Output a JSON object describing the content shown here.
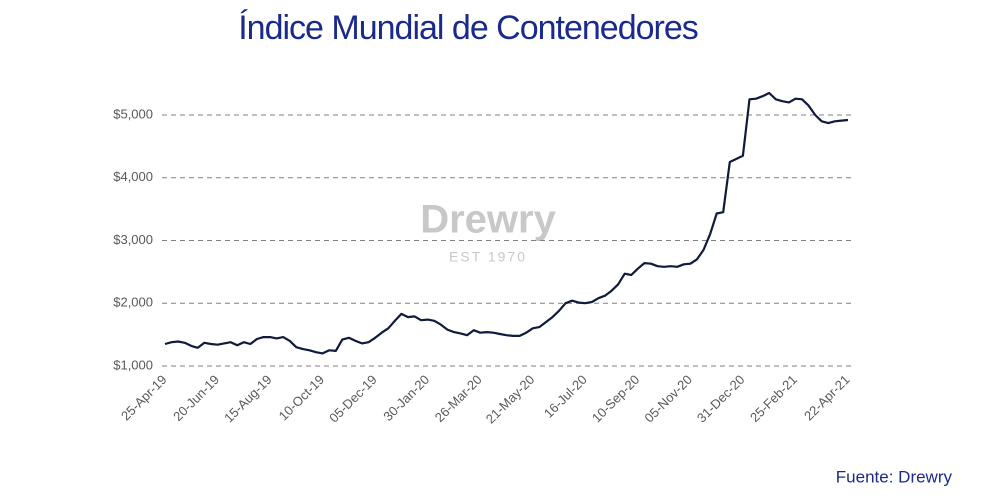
{
  "chart_data": {
    "type": "line",
    "title": "Índice Mundial de Contenedores",
    "source": "Fuente:  Drewry",
    "watermark": [
      "Drewry",
      "EST 1970"
    ],
    "categories": [
      "25-Apr-19",
      null,
      null,
      null,
      null,
      null,
      null,
      null,
      "20-Jun-19",
      null,
      null,
      null,
      null,
      null,
      null,
      null,
      "15-Aug-19",
      null,
      null,
      null,
      null,
      null,
      null,
      null,
      "10-Oct-19",
      null,
      null,
      null,
      null,
      null,
      null,
      null,
      "05-Dec-19",
      null,
      null,
      null,
      null,
      null,
      null,
      null,
      "30-Jan-20",
      null,
      null,
      null,
      null,
      null,
      null,
      null,
      "26-Mar-20",
      null,
      null,
      null,
      null,
      null,
      null,
      null,
      "21-May-20",
      null,
      null,
      null,
      null,
      null,
      null,
      null,
      "16-Jul-20",
      null,
      null,
      null,
      null,
      null,
      null,
      null,
      "10-Sep-20",
      null,
      null,
      null,
      null,
      null,
      null,
      null,
      "05-Nov-20",
      null,
      null,
      null,
      null,
      null,
      null,
      null,
      "31-Dec-20",
      null,
      null,
      null,
      null,
      null,
      null,
      null,
      "25-Feb-21",
      null,
      null,
      null,
      null,
      null,
      null,
      null,
      "22-Apr-21"
    ],
    "series": [
      {
        "name": "Índice Mundial de Contenedores",
        "color": "#0f1a3c",
        "values": [
          1350,
          1380,
          1390,
          1370,
          1320,
          1290,
          1370,
          1350,
          1340,
          1360,
          1380,
          1330,
          1380,
          1350,
          1430,
          1460,
          1460,
          1440,
          1460,
          1400,
          1300,
          1270,
          1250,
          1220,
          1200,
          1250,
          1240,
          1420,
          1450,
          1400,
          1360,
          1380,
          1450,
          1530,
          1600,
          1720,
          1830,
          1780,
          1790,
          1730,
          1740,
          1720,
          1660,
          1580,
          1540,
          1520,
          1490,
          1570,
          1530,
          1540,
          1530,
          1510,
          1490,
          1480,
          1480,
          1530,
          1600,
          1620,
          1700,
          1780,
          1880,
          2000,
          2040,
          2010,
          2000,
          2020,
          2080,
          2120,
          2200,
          2300,
          2470,
          2450,
          2550,
          2640,
          2630,
          2590,
          2580,
          2590,
          2580,
          2620,
          2630,
          2700,
          2850,
          3100,
          3430,
          3450,
          4250,
          4300,
          4350,
          5250,
          5260,
          5300,
          5350,
          5250,
          5220,
          5200,
          5260,
          5250,
          5150,
          5000,
          4900,
          4870,
          4900,
          4910,
          4920
        ]
      }
    ],
    "ylim": [
      1000,
      5500
    ],
    "yticks": [
      {
        "value": 1000,
        "label": "$1,000"
      },
      {
        "value": 2000,
        "label": "$2,000"
      },
      {
        "value": 3000,
        "label": "$3,000"
      },
      {
        "value": 4000,
        "label": "$4,000"
      },
      {
        "value": 5000,
        "label": "$5,000"
      }
    ],
    "grid": true
  }
}
